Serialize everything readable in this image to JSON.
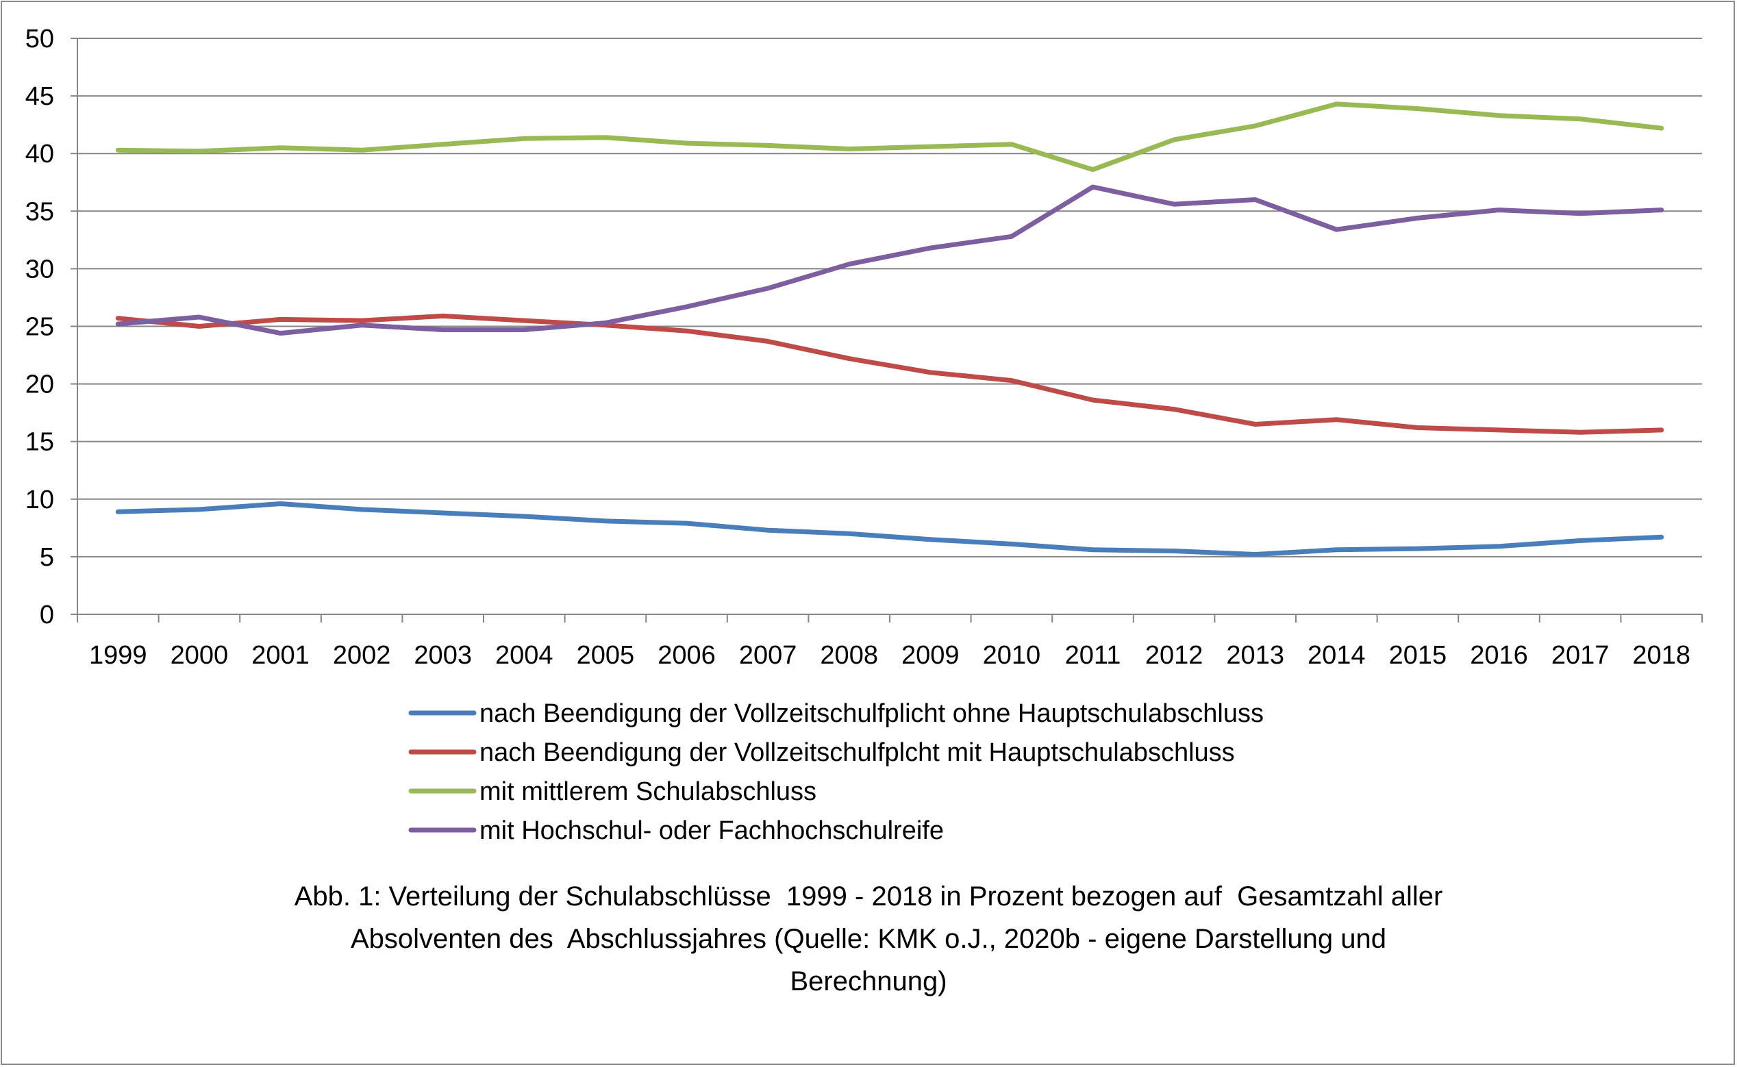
{
  "chart_data": {
    "type": "line",
    "categories": [
      "1999",
      "2000",
      "2001",
      "2002",
      "2003",
      "2004",
      "2005",
      "2006",
      "2007",
      "2008",
      "2009",
      "2010",
      "2011",
      "2012",
      "2013",
      "2014",
      "2015",
      "2016",
      "2017",
      "2018"
    ],
    "ylim": [
      0,
      50
    ],
    "yticks": [
      0,
      5,
      10,
      15,
      20,
      25,
      30,
      35,
      40,
      45,
      50
    ],
    "grid": true,
    "legend_position": "bottom",
    "series": [
      {
        "name": "nach Beendigung der Vollzeitschulfplicht ohne Hauptschulabschluss",
        "color": "#4a7ebb",
        "values": [
          8.9,
          9.1,
          9.6,
          9.1,
          8.8,
          8.5,
          8.1,
          7.9,
          7.3,
          7.0,
          6.5,
          6.1,
          5.6,
          5.5,
          5.2,
          5.6,
          5.7,
          5.9,
          6.4,
          6.7
        ]
      },
      {
        "name": "nach Beendigung der Vollzeitschulfplcht mit Hauptschulabschluss",
        "color": "#be4b48",
        "values": [
          25.7,
          25.0,
          25.6,
          25.5,
          25.9,
          25.5,
          25.1,
          24.6,
          23.7,
          22.2,
          21.0,
          20.3,
          18.6,
          17.8,
          16.5,
          16.9,
          16.2,
          16.0,
          15.8,
          16.0
        ]
      },
      {
        "name": "mit mittlerem Schulabschluss",
        "color": "#98b954",
        "values": [
          40.3,
          40.2,
          40.5,
          40.3,
          40.8,
          41.3,
          41.4,
          40.9,
          40.7,
          40.4,
          40.6,
          40.8,
          38.6,
          41.2,
          42.4,
          44.3,
          43.9,
          43.3,
          43.0,
          42.2
        ]
      },
      {
        "name": "mit Hochschul- oder Fachhochschulreife",
        "color": "#7d5fa0",
        "values": [
          25.2,
          25.8,
          24.4,
          25.1,
          24.7,
          24.7,
          25.3,
          26.7,
          28.3,
          30.4,
          31.8,
          32.8,
          37.1,
          35.6,
          36.0,
          33.4,
          34.4,
          35.1,
          34.8,
          35.1
        ]
      }
    ],
    "title": "",
    "xlabel": "",
    "ylabel": ""
  },
  "caption": {
    "line1": "Abb. 1: Verteilung der Schulabschlüsse  1999 - 2018 in Prozent bezogen auf  Gesamtzahl aller",
    "line2": "Absolventen des  Abschlussjahres (Quelle: KMK o.J., 2020b - eigene Darstellung und",
    "line3": "Berechnung)"
  },
  "colors": {
    "grid": "#868686",
    "axis": "#868686",
    "frame": "#8c8c8c"
  }
}
